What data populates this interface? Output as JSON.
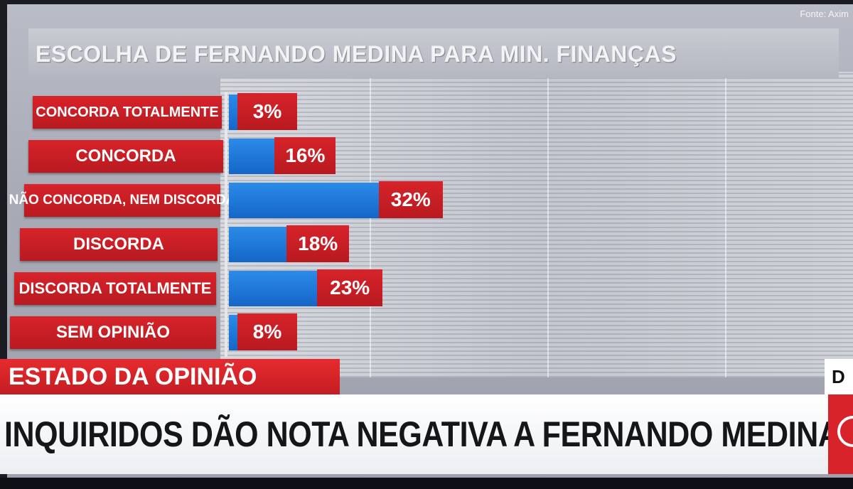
{
  "source": "Fonte: Axim",
  "chart_data": {
    "type": "bar",
    "title": "ESCOLHA DE FERNANDO MEDINA PARA MIN. FINANÇAS",
    "categories": [
      "CONCORDA TOTALMENTE",
      "CONCORDA",
      "NÃO CONCORDA, NEM DISCORDA",
      "DISCORDA",
      "DISCORDA TOTALMENTE",
      "SEM OPINIÃO"
    ],
    "values": [
      3,
      16,
      32,
      18,
      23,
      8
    ],
    "value_labels": [
      "3%",
      "16%",
      "32%",
      "18%",
      "23%",
      "8%"
    ],
    "orientation": "horizontal",
    "bar_color": "#1a73d6",
    "label_color": "#d11f26",
    "xlim": [
      0,
      32
    ],
    "grid": false
  },
  "ticker": {
    "label": "ESTADO DA OPINIÃO",
    "headline": "INQUIRIDOS DÃO NOTA NEGATIVA A FERNANDO MEDINA",
    "channel_letter": "D"
  },
  "colors": {
    "accent_red": "#d8232a",
    "bar_blue": "#1a73d6",
    "headline_bg": "#ffffff"
  }
}
